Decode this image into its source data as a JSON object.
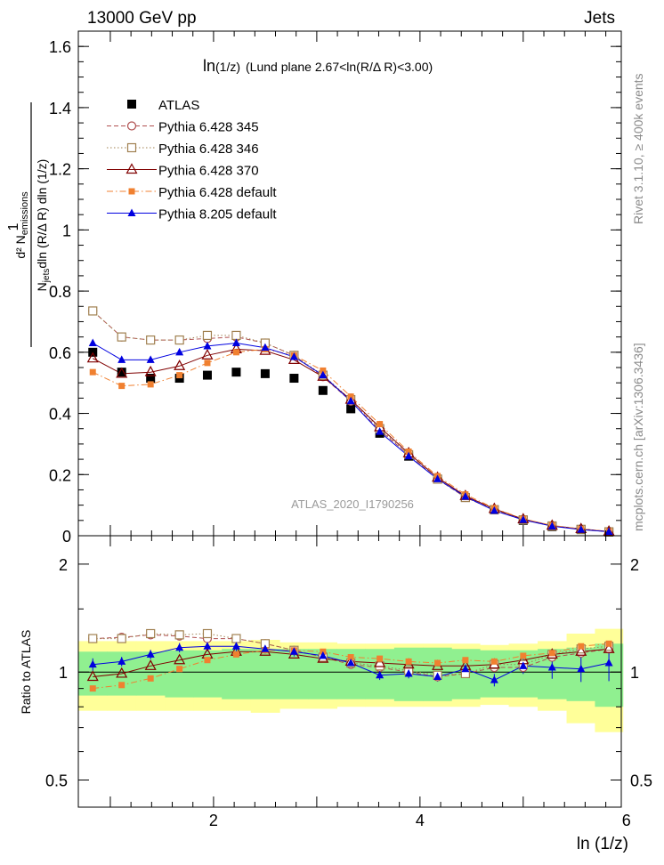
{
  "header": {
    "energy_label": "13000 GeV pp",
    "process_label": "Jets",
    "rivet_label": "Rivet 3.1.10, ≥ 400k events",
    "mcplots_label": "mcplots.cern.ch [arXiv:1306.3436]",
    "analysis_label": "ATLAS_2020_I1790256"
  },
  "colors": {
    "atlas": "#000000",
    "p345": "#b05050",
    "p346": "#a08050",
    "p370": "#800000",
    "p6def": "#f08030",
    "p8def": "#0000e0",
    "band_green": "#90f090",
    "band_yellow": "#ffff99"
  },
  "chart_data": [
    {
      "type": "scatter",
      "title_main": "ln",
      "title_paren": "(1/z)",
      "title_rest": "(Lund plane 2.67<ln(R/Δ R)<3.00)",
      "ylabel": {
        "frac_top": "d² N",
        "frac_top_sub": "emissions",
        "frac_num": "1",
        "frac_bottom_pre": "N",
        "frac_bottom_sub": "jets",
        "frac_bottom_post": "dln (R/Δ R) dln (1/z)"
      },
      "xlim": [
        0.69,
        5.95
      ],
      "ylim": [
        0,
        1.65
      ],
      "yticks": [
        0,
        0.2,
        0.4,
        0.6,
        0.8,
        1,
        1.2,
        1.4,
        1.6
      ],
      "ytick_labels": [
        "0",
        "0.2",
        "0.4",
        "0.6",
        "0.8",
        "1",
        "1.2",
        "1.4",
        "1.6"
      ],
      "x": [
        0.83,
        1.11,
        1.39,
        1.67,
        1.94,
        2.22,
        2.5,
        2.78,
        3.06,
        3.33,
        3.61,
        3.89,
        4.17,
        4.44,
        4.72,
        5.0,
        5.28,
        5.56,
        5.83
      ],
      "series": [
        {
          "name": "ATLAS",
          "key": "atlas",
          "marker": "square-filled",
          "line": "none",
          "values": [
            0.6,
            0.535,
            0.515,
            0.515,
            0.525,
            0.535,
            0.53,
            0.515,
            0.475,
            0.415,
            0.335,
            0.26,
            0.185,
            0.125,
            0.085,
            0.05,
            0.03,
            0.02,
            0.012
          ]
        },
        {
          "name": "Pythia 6.428 345",
          "key": "p345",
          "marker": "circle-open",
          "line": "dashed",
          "values": [
            0.735,
            0.65,
            0.64,
            0.64,
            0.645,
            0.65,
            0.63,
            0.59,
            0.52,
            0.44,
            0.345,
            0.265,
            0.185,
            0.125,
            0.085,
            0.052,
            0.032,
            0.021,
            0.013
          ]
        },
        {
          "name": "Pythia 6.428 346",
          "key": "p346",
          "marker": "square-open",
          "line": "dotted",
          "values": [
            0.735,
            0.65,
            0.64,
            0.64,
            0.655,
            0.655,
            0.63,
            0.59,
            0.525,
            0.445,
            0.35,
            0.265,
            0.185,
            0.125,
            0.085,
            0.052,
            0.032,
            0.021,
            0.013
          ]
        },
        {
          "name": "Pythia 6.428 370",
          "key": "p370",
          "marker": "triangle-open",
          "line": "solid",
          "values": [
            0.58,
            0.53,
            0.535,
            0.555,
            0.59,
            0.61,
            0.605,
            0.575,
            0.52,
            0.445,
            0.355,
            0.27,
            0.19,
            0.13,
            0.088,
            0.054,
            0.033,
            0.022,
            0.014
          ]
        },
        {
          "name": "Pythia 6.428 default",
          "key": "p6def",
          "marker": "square-filled-small",
          "line": "dashdot",
          "values": [
            0.535,
            0.49,
            0.495,
            0.525,
            0.565,
            0.6,
            0.61,
            0.59,
            0.54,
            0.455,
            0.365,
            0.275,
            0.195,
            0.135,
            0.09,
            0.055,
            0.034,
            0.022,
            0.014
          ]
        },
        {
          "name": "Pythia 8.205 default",
          "key": "p8def",
          "marker": "triangle-filled",
          "line": "solid",
          "values": [
            0.63,
            0.575,
            0.575,
            0.6,
            0.62,
            0.63,
            0.615,
            0.585,
            0.525,
            0.44,
            0.34,
            0.26,
            0.185,
            0.128,
            0.082,
            0.052,
            0.031,
            0.02,
            0.013
          ]
        }
      ]
    },
    {
      "type": "scatter",
      "xlabel": "ln (1/z)",
      "ylabel": "Ratio to ATLAS",
      "ylog": true,
      "ylim": [
        0.42,
        2.4
      ],
      "yticks": [
        0.5,
        1,
        2
      ],
      "ytick_labels": [
        "0.5",
        "1",
        "2"
      ],
      "xticks": [
        2,
        4,
        6
      ],
      "xtick_labels": [
        "2",
        "4",
        "6"
      ],
      "x": [
        0.83,
        1.11,
        1.39,
        1.67,
        1.94,
        2.22,
        2.5,
        2.78,
        3.06,
        3.33,
        3.61,
        3.89,
        4.17,
        4.44,
        4.72,
        5.0,
        5.28,
        5.56,
        5.83
      ],
      "band_green_halfwidth": [
        0.14,
        0.14,
        0.14,
        0.15,
        0.15,
        0.16,
        0.16,
        0.16,
        0.16,
        0.16,
        0.16,
        0.17,
        0.17,
        0.16,
        0.15,
        0.15,
        0.16,
        0.17,
        0.2
      ],
      "band_yellow_halfwidth": [
        0.22,
        0.22,
        0.22,
        0.22,
        0.22,
        0.22,
        0.23,
        0.21,
        0.21,
        0.2,
        0.2,
        0.2,
        0.2,
        0.2,
        0.19,
        0.2,
        0.22,
        0.28,
        0.32
      ],
      "ratio_errors": [
        0.04,
        0.03,
        0.03,
        0.03,
        0.03,
        0.03,
        0.03,
        0.03,
        0.03,
        0.03,
        0.03,
        0.03,
        0.03,
        0.03,
        0.04,
        0.05,
        0.07,
        0.08,
        0.11
      ],
      "series": [
        {
          "key": "p345",
          "values": [
            1.24,
            1.25,
            1.27,
            1.26,
            1.24,
            1.24,
            1.2,
            1.15,
            1.1,
            1.05,
            1.03,
            1.0,
            0.97,
            0.99,
            1.03,
            1.03,
            1.1,
            1.13,
            1.16
          ]
        },
        {
          "key": "p346",
          "values": [
            1.24,
            1.24,
            1.28,
            1.27,
            1.28,
            1.24,
            1.2,
            1.15,
            1.1,
            1.06,
            1.04,
            1.01,
            0.98,
            0.99,
            1.05,
            1.05,
            1.12,
            1.16,
            1.18
          ]
        },
        {
          "key": "p370",
          "values": [
            0.97,
            0.99,
            1.04,
            1.08,
            1.12,
            1.14,
            1.14,
            1.12,
            1.09,
            1.07,
            1.06,
            1.05,
            1.04,
            1.04,
            1.05,
            1.08,
            1.12,
            1.14,
            1.16
          ]
        },
        {
          "key": "p6def",
          "values": [
            0.9,
            0.92,
            0.96,
            1.02,
            1.08,
            1.12,
            1.15,
            1.15,
            1.14,
            1.1,
            1.09,
            1.07,
            1.06,
            1.08,
            1.07,
            1.11,
            1.13,
            1.18,
            1.2
          ]
        },
        {
          "key": "p8def",
          "values": [
            1.05,
            1.07,
            1.12,
            1.17,
            1.18,
            1.18,
            1.16,
            1.14,
            1.11,
            1.06,
            0.98,
            0.99,
            0.97,
            1.02,
            0.95,
            1.04,
            1.03,
            1.02,
            1.06
          ]
        }
      ]
    }
  ]
}
